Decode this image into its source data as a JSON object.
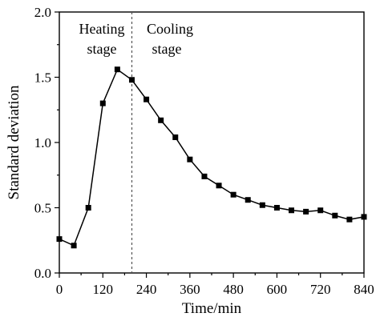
{
  "chart_data": {
    "type": "line",
    "xlabel": "Time/min",
    "ylabel": "Standard deviation",
    "xlim": [
      0,
      840
    ],
    "ylim": [
      0,
      2.0
    ],
    "xticks": [
      0,
      120,
      240,
      360,
      480,
      600,
      720,
      840
    ],
    "yticks": [
      0.0,
      0.5,
      1.0,
      1.5,
      2.0
    ],
    "xtick_labels": [
      "0",
      "120",
      "240",
      "360",
      "480",
      "600",
      "720",
      "840"
    ],
    "ytick_labels": [
      "0.0",
      "0.5",
      "1.0",
      "1.5",
      "2.0"
    ],
    "grid": false,
    "series": [
      {
        "x": [
          0,
          40,
          80,
          120,
          160,
          200,
          240,
          280,
          320,
          360,
          400,
          440,
          480,
          520,
          560,
          600,
          640,
          680,
          720,
          760,
          800,
          840
        ],
        "y": [
          0.26,
          0.21,
          0.5,
          1.3,
          1.56,
          1.48,
          1.33,
          1.17,
          1.04,
          0.87,
          0.74,
          0.67,
          0.6,
          0.56,
          0.52,
          0.5,
          0.48,
          0.47,
          0.48,
          0.44,
          0.41,
          0.43
        ],
        "color": "#000000",
        "marker": "square"
      }
    ],
    "divider_x": 200,
    "annotations": {
      "heating_line1": "Heating",
      "heating_line2": "stage",
      "cooling_line1": "Cooling",
      "cooling_line2": "stage"
    }
  }
}
